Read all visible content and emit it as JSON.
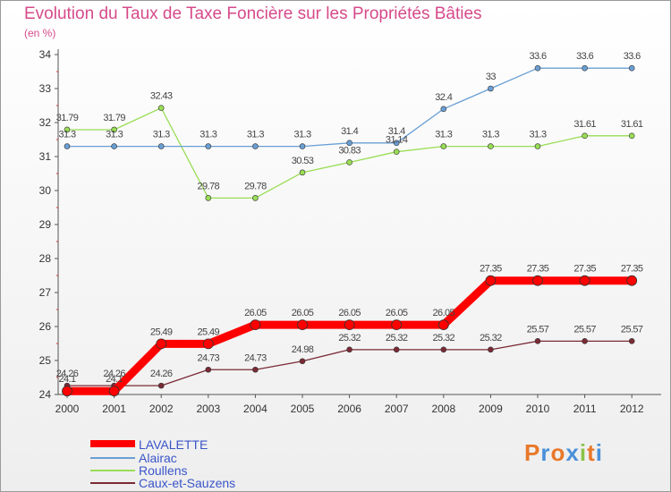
{
  "chart_data": {
    "type": "line",
    "title": "Evolution du Taux de Taxe Foncière sur les Propriétés Bâties",
    "subtitle": "(en %)",
    "x": [
      "2000",
      "2001",
      "2002",
      "2003",
      "2004",
      "2005",
      "2006",
      "2007",
      "2008",
      "2009",
      "2010",
      "2011",
      "2012"
    ],
    "ylim": [
      24,
      34
    ],
    "yticks": [
      "24",
      "25",
      "26",
      "27",
      "28",
      "29",
      "30",
      "31",
      "32",
      "33",
      "34"
    ],
    "grid": false,
    "legend_position": "bottom-left",
    "series": [
      {
        "name": "LAVALETTE",
        "color": "#ff0000",
        "values": [
          24.1,
          24.1,
          25.49,
          25.49,
          26.05,
          26.05,
          26.05,
          26.05,
          26.05,
          27.35,
          27.35,
          27.35,
          27.35
        ],
        "labels": [
          "24.1",
          "24.1",
          "25.49",
          "25.49",
          "26.05",
          "26.05",
          "26.05",
          "26.05",
          "26.05",
          "27.35",
          "27.35",
          "27.35",
          "27.35"
        ]
      },
      {
        "name": "Alairac",
        "color": "#6a9fd4",
        "values": [
          31.3,
          31.3,
          31.3,
          31.3,
          31.3,
          31.3,
          31.4,
          31.4,
          32.4,
          33,
          33.6,
          33.6,
          33.6
        ],
        "labels": [
          "31.3",
          "31.3",
          "31.3",
          "31.3",
          "31.3",
          "31.3",
          "31.4",
          "31.4",
          "32.4",
          "33",
          "33.6",
          "33.6",
          "33.6"
        ]
      },
      {
        "name": "Roullens",
        "color": "#99dd55",
        "values": [
          31.79,
          31.79,
          32.43,
          29.78,
          29.78,
          30.53,
          30.83,
          31.14,
          31.3,
          31.3,
          31.3,
          31.61,
          31.61
        ],
        "labels": [
          "31.79",
          "31.79",
          "32.43",
          "29.78",
          "29.78",
          "30.53",
          "30.83",
          "31.14",
          "31.3",
          "31.3",
          "31.3",
          "31.61",
          "31.61"
        ]
      },
      {
        "name": "Caux-et-Sauzens",
        "color": "#7a2a35",
        "values": [
          24.26,
          24.26,
          24.26,
          24.73,
          24.73,
          24.98,
          25.32,
          25.32,
          25.32,
          25.32,
          25.57,
          25.57,
          25.57
        ],
        "labels": [
          "24.26",
          "24.26",
          "24.26",
          "24.73",
          "24.73",
          "24.98",
          "25.32",
          "25.32",
          "25.32",
          "25.32",
          "25.57",
          "25.57",
          "25.57"
        ]
      }
    ]
  },
  "logo": {
    "l1": "P",
    "l2": "r",
    "l3": "o",
    "l4": "x",
    "l5": "i",
    "l6": "t",
    "l7": "i"
  }
}
